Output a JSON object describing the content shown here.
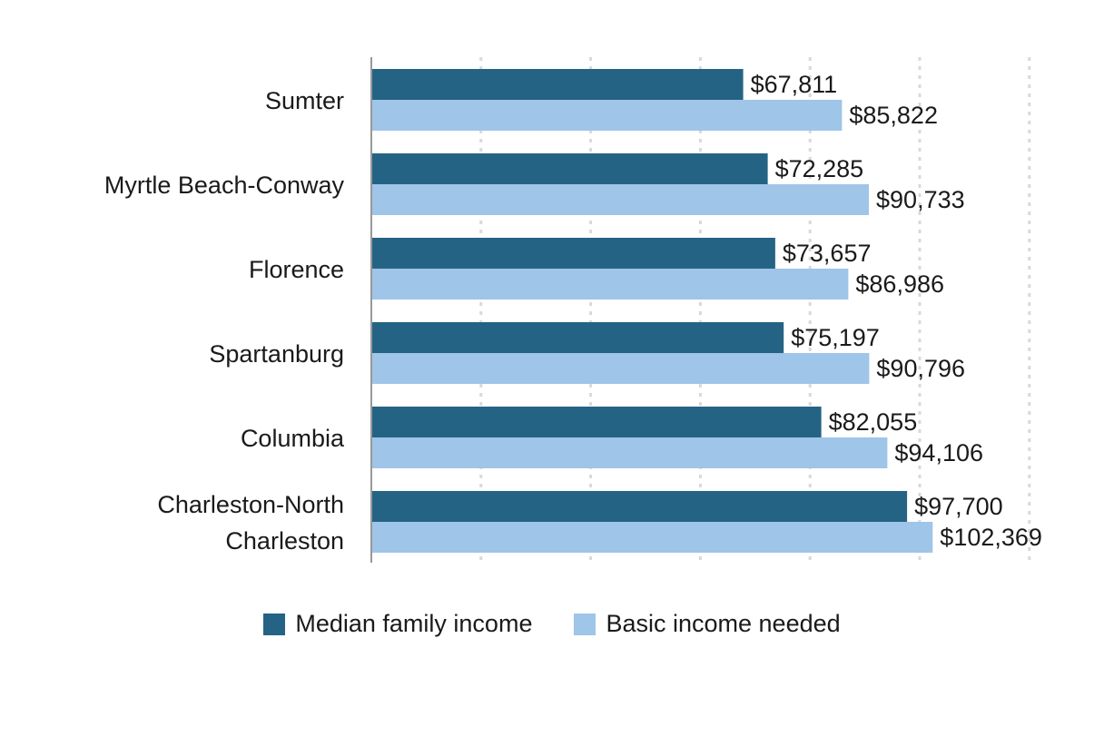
{
  "chart_data": {
    "type": "bar",
    "orientation": "horizontal",
    "title": "",
    "xlabel": "",
    "ylabel": "",
    "categories": [
      [
        "Sumter"
      ],
      [
        "Myrtle Beach-Conway"
      ],
      [
        "Florence"
      ],
      [
        "Spartanburg"
      ],
      [
        "Columbia"
      ],
      [
        "Charleston-North",
        "Charleston"
      ]
    ],
    "series": [
      {
        "name": "Median family income",
        "color": "#256385",
        "values": [
          67811,
          72285,
          73657,
          75197,
          82055,
          97700
        ],
        "labels": [
          "$67,811",
          "$72,285",
          "$73,657",
          "$75,197",
          "$82,055",
          "$97,700"
        ]
      },
      {
        "name": "Basic income needed",
        "color": "#9fc5e8",
        "values": [
          85822,
          90733,
          86986,
          90796,
          94106,
          102369
        ],
        "labels": [
          "$85,822",
          "$90,733",
          "$86,986",
          "$90,796",
          "$94,106",
          "$102,369"
        ]
      }
    ],
    "xlim": [
      0,
      120000
    ],
    "grid_step": 20000,
    "grid": true,
    "legend_position": "bottom"
  }
}
